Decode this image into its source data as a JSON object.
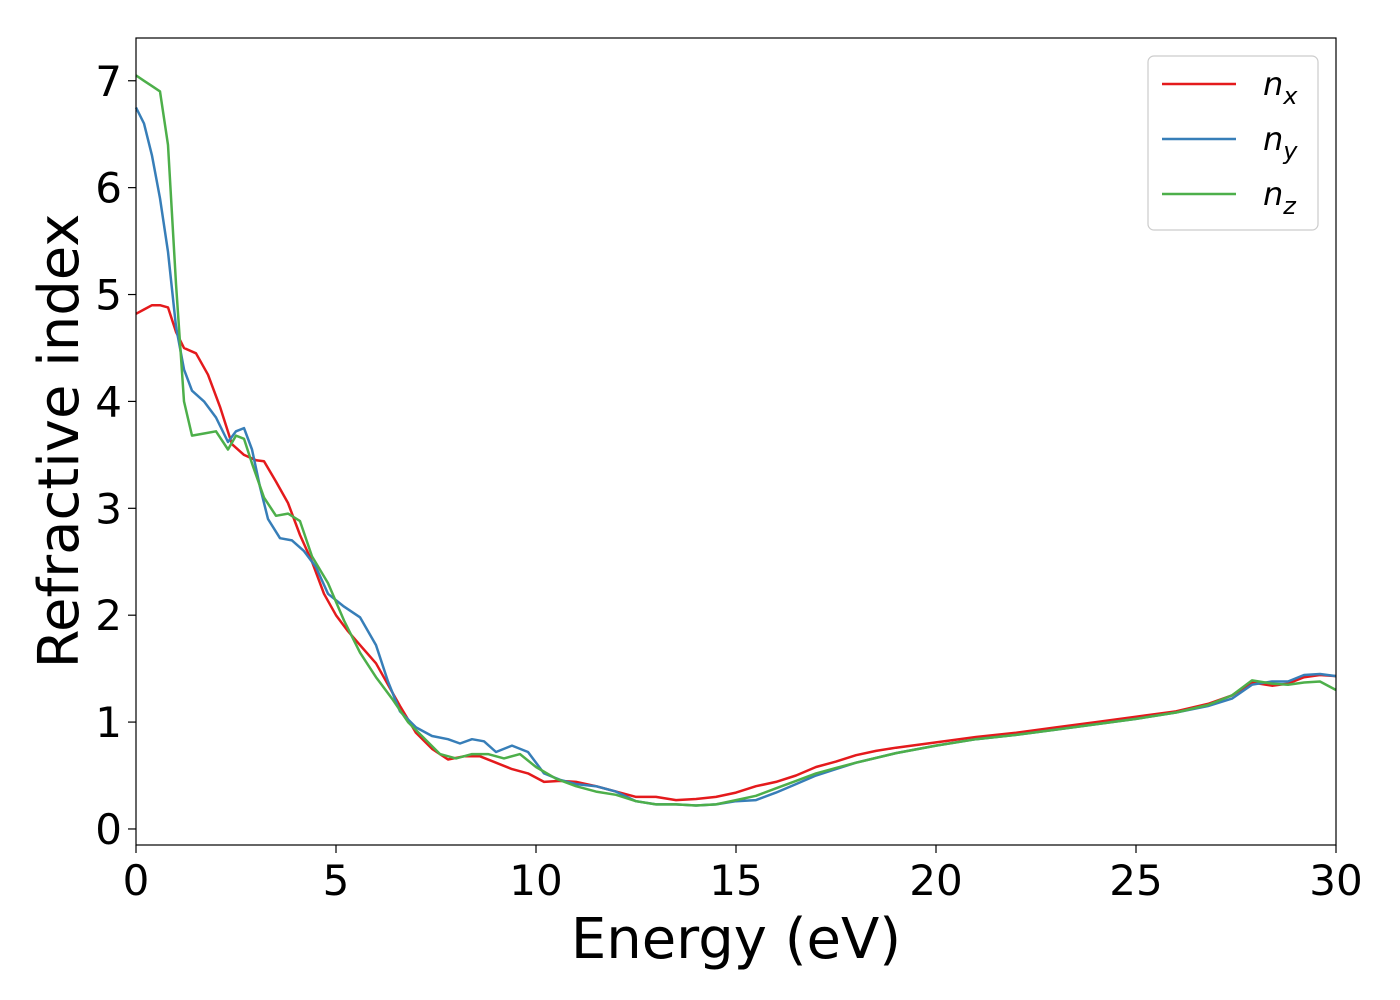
{
  "chart_data": {
    "type": "line",
    "xlabel": "Energy (eV)",
    "ylabel": "Refractive index",
    "xlim": [
      0,
      30
    ],
    "ylim": [
      -0.15,
      7.4
    ],
    "xticks": [
      "0",
      "5",
      "10",
      "15",
      "20",
      "25",
      "30"
    ],
    "yticks": [
      "0",
      "1",
      "2",
      "3",
      "4",
      "5",
      "6",
      "7"
    ],
    "grid": false,
    "legend_position": "top-right",
    "series": [
      {
        "name": "n",
        "subscript": "x",
        "color": "#e41a1c",
        "points": [
          [
            0,
            4.82
          ],
          [
            0.2,
            4.86
          ],
          [
            0.4,
            4.9
          ],
          [
            0.6,
            4.9
          ],
          [
            0.8,
            4.88
          ],
          [
            1.0,
            4.65
          ],
          [
            1.2,
            4.5
          ],
          [
            1.5,
            4.45
          ],
          [
            1.8,
            4.25
          ],
          [
            2.1,
            3.95
          ],
          [
            2.4,
            3.6
          ],
          [
            2.7,
            3.5
          ],
          [
            3.0,
            3.45
          ],
          [
            3.2,
            3.44
          ],
          [
            3.5,
            3.25
          ],
          [
            3.8,
            3.05
          ],
          [
            4.1,
            2.75
          ],
          [
            4.4,
            2.5
          ],
          [
            4.7,
            2.2
          ],
          [
            5.0,
            2.0
          ],
          [
            5.3,
            1.85
          ],
          [
            5.6,
            1.72
          ],
          [
            6.0,
            1.55
          ],
          [
            6.3,
            1.35
          ],
          [
            6.6,
            1.15
          ],
          [
            7.0,
            0.9
          ],
          [
            7.4,
            0.75
          ],
          [
            7.8,
            0.65
          ],
          [
            8.2,
            0.68
          ],
          [
            8.6,
            0.68
          ],
          [
            9.0,
            0.62
          ],
          [
            9.4,
            0.56
          ],
          [
            9.8,
            0.52
          ],
          [
            10.2,
            0.44
          ],
          [
            10.6,
            0.45
          ],
          [
            11.0,
            0.44
          ],
          [
            11.5,
            0.4
          ],
          [
            12.0,
            0.35
          ],
          [
            12.5,
            0.3
          ],
          [
            13.0,
            0.3
          ],
          [
            13.5,
            0.27
          ],
          [
            14.0,
            0.28
          ],
          [
            14.5,
            0.3
          ],
          [
            15.0,
            0.34
          ],
          [
            15.5,
            0.4
          ],
          [
            16.0,
            0.44
          ],
          [
            16.5,
            0.5
          ],
          [
            17.0,
            0.58
          ],
          [
            17.5,
            0.63
          ],
          [
            18.0,
            0.69
          ],
          [
            18.5,
            0.73
          ],
          [
            19.0,
            0.76
          ],
          [
            20.0,
            0.81
          ],
          [
            21.0,
            0.86
          ],
          [
            22.0,
            0.9
          ],
          [
            23.0,
            0.95
          ],
          [
            24.0,
            1.0
          ],
          [
            25.0,
            1.05
          ],
          [
            26.0,
            1.1
          ],
          [
            26.8,
            1.17
          ],
          [
            27.4,
            1.25
          ],
          [
            27.9,
            1.37
          ],
          [
            28.4,
            1.34
          ],
          [
            28.8,
            1.36
          ],
          [
            29.2,
            1.42
          ],
          [
            29.6,
            1.44
          ],
          [
            30.0,
            1.43
          ]
        ]
      },
      {
        "name": "n",
        "subscript": "y",
        "color": "#377eb8",
        "points": [
          [
            0,
            6.75
          ],
          [
            0.2,
            6.6
          ],
          [
            0.4,
            6.3
          ],
          [
            0.6,
            5.9
          ],
          [
            0.8,
            5.4
          ],
          [
            1.0,
            4.7
          ],
          [
            1.2,
            4.3
          ],
          [
            1.4,
            4.1
          ],
          [
            1.7,
            4.0
          ],
          [
            2.0,
            3.85
          ],
          [
            2.3,
            3.62
          ],
          [
            2.5,
            3.72
          ],
          [
            2.7,
            3.75
          ],
          [
            2.9,
            3.55
          ],
          [
            3.1,
            3.2
          ],
          [
            3.3,
            2.9
          ],
          [
            3.6,
            2.72
          ],
          [
            3.9,
            2.7
          ],
          [
            4.2,
            2.6
          ],
          [
            4.5,
            2.45
          ],
          [
            4.8,
            2.2
          ],
          [
            5.2,
            2.08
          ],
          [
            5.6,
            1.98
          ],
          [
            6.0,
            1.72
          ],
          [
            6.3,
            1.38
          ],
          [
            6.6,
            1.1
          ],
          [
            7.0,
            0.95
          ],
          [
            7.4,
            0.87
          ],
          [
            7.8,
            0.84
          ],
          [
            8.1,
            0.8
          ],
          [
            8.4,
            0.84
          ],
          [
            8.7,
            0.82
          ],
          [
            9.0,
            0.72
          ],
          [
            9.4,
            0.78
          ],
          [
            9.8,
            0.72
          ],
          [
            10.2,
            0.52
          ],
          [
            10.6,
            0.46
          ],
          [
            11.0,
            0.42
          ],
          [
            11.5,
            0.4
          ],
          [
            12.0,
            0.35
          ],
          [
            12.5,
            0.26
          ],
          [
            13.0,
            0.23
          ],
          [
            13.5,
            0.23
          ],
          [
            14.0,
            0.22
          ],
          [
            14.5,
            0.23
          ],
          [
            15.0,
            0.26
          ],
          [
            15.5,
            0.27
          ],
          [
            16.0,
            0.34
          ],
          [
            16.5,
            0.42
          ],
          [
            17.0,
            0.5
          ],
          [
            17.5,
            0.56
          ],
          [
            18.0,
            0.62
          ],
          [
            19.0,
            0.71
          ],
          [
            20.0,
            0.78
          ],
          [
            21.0,
            0.84
          ],
          [
            22.0,
            0.88
          ],
          [
            23.0,
            0.93
          ],
          [
            24.0,
            0.98
          ],
          [
            25.0,
            1.03
          ],
          [
            26.0,
            1.09
          ],
          [
            26.8,
            1.15
          ],
          [
            27.4,
            1.22
          ],
          [
            27.9,
            1.35
          ],
          [
            28.4,
            1.38
          ],
          [
            28.8,
            1.38
          ],
          [
            29.2,
            1.44
          ],
          [
            29.6,
            1.45
          ],
          [
            30.0,
            1.43
          ]
        ]
      },
      {
        "name": "n",
        "subscript": "z",
        "color": "#4daf4a",
        "points": [
          [
            0,
            7.05
          ],
          [
            0.2,
            7.0
          ],
          [
            0.4,
            6.95
          ],
          [
            0.6,
            6.9
          ],
          [
            0.8,
            6.4
          ],
          [
            1.0,
            5.1
          ],
          [
            1.2,
            4.0
          ],
          [
            1.4,
            3.68
          ],
          [
            1.7,
            3.7
          ],
          [
            2.0,
            3.72
          ],
          [
            2.3,
            3.55
          ],
          [
            2.5,
            3.68
          ],
          [
            2.7,
            3.65
          ],
          [
            2.9,
            3.42
          ],
          [
            3.2,
            3.1
          ],
          [
            3.5,
            2.93
          ],
          [
            3.8,
            2.95
          ],
          [
            4.1,
            2.88
          ],
          [
            4.4,
            2.55
          ],
          [
            4.8,
            2.3
          ],
          [
            5.2,
            1.95
          ],
          [
            5.6,
            1.65
          ],
          [
            6.0,
            1.42
          ],
          [
            6.4,
            1.22
          ],
          [
            6.8,
            1.0
          ],
          [
            7.2,
            0.85
          ],
          [
            7.6,
            0.7
          ],
          [
            8.0,
            0.66
          ],
          [
            8.4,
            0.7
          ],
          [
            8.8,
            0.7
          ],
          [
            9.2,
            0.66
          ],
          [
            9.6,
            0.7
          ],
          [
            10.0,
            0.58
          ],
          [
            10.5,
            0.47
          ],
          [
            11.0,
            0.4
          ],
          [
            11.5,
            0.35
          ],
          [
            12.0,
            0.32
          ],
          [
            12.5,
            0.26
          ],
          [
            13.0,
            0.23
          ],
          [
            13.5,
            0.23
          ],
          [
            14.0,
            0.22
          ],
          [
            14.5,
            0.23
          ],
          [
            15.0,
            0.27
          ],
          [
            15.5,
            0.31
          ],
          [
            16.0,
            0.38
          ],
          [
            16.5,
            0.45
          ],
          [
            17.0,
            0.52
          ],
          [
            17.5,
            0.57
          ],
          [
            18.0,
            0.62
          ],
          [
            19.0,
            0.71
          ],
          [
            20.0,
            0.78
          ],
          [
            21.0,
            0.84
          ],
          [
            22.0,
            0.88
          ],
          [
            23.0,
            0.93
          ],
          [
            24.0,
            0.98
          ],
          [
            25.0,
            1.03
          ],
          [
            26.0,
            1.09
          ],
          [
            26.8,
            1.16
          ],
          [
            27.4,
            1.25
          ],
          [
            27.9,
            1.39
          ],
          [
            28.4,
            1.36
          ],
          [
            28.8,
            1.35
          ],
          [
            29.2,
            1.37
          ],
          [
            29.6,
            1.38
          ],
          [
            30.0,
            1.3
          ]
        ]
      }
    ]
  }
}
